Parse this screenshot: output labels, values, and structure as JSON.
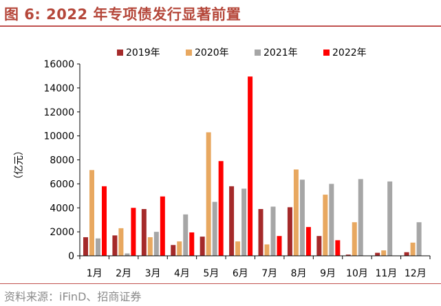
{
  "header": {
    "title": "图 6:  2022 年专项债发行显著前置"
  },
  "footer": {
    "source": "资料来源：iFinD、招商证券"
  },
  "chart_data": {
    "type": "bar",
    "title": "",
    "xlabel": "",
    "ylabel": "（亿元）",
    "ylim": [
      0,
      16000
    ],
    "yticks": [
      0,
      2000,
      4000,
      6000,
      8000,
      10000,
      12000,
      14000,
      16000
    ],
    "grid": false,
    "legend_position": "top-center",
    "categories": [
      "1月",
      "2月",
      "3月",
      "4月",
      "5月",
      "6月",
      "7月",
      "8月",
      "9月",
      "10月",
      "11月",
      "12月"
    ],
    "series": [
      {
        "name": "2019年",
        "color": "#a52a2a",
        "values": [
          1550,
          1700,
          3900,
          900,
          1600,
          5800,
          3900,
          4050,
          1650,
          100,
          250,
          300
        ]
      },
      {
        "name": "2020年",
        "color": "#e8a860",
        "values": [
          7150,
          2300,
          1550,
          1200,
          10300,
          1200,
          950,
          7200,
          5100,
          2800,
          450,
          1100
        ]
      },
      {
        "name": "2021年",
        "color": "#a6a6a6",
        "values": [
          1450,
          200,
          2000,
          3450,
          4500,
          5600,
          4100,
          6350,
          6000,
          6400,
          6200,
          2800
        ]
      },
      {
        "name": "2022年",
        "color": "#ff0000",
        "values": [
          5800,
          4000,
          4950,
          1950,
          7900,
          14950,
          1650,
          2400,
          1300,
          0,
          0,
          0
        ]
      }
    ]
  }
}
